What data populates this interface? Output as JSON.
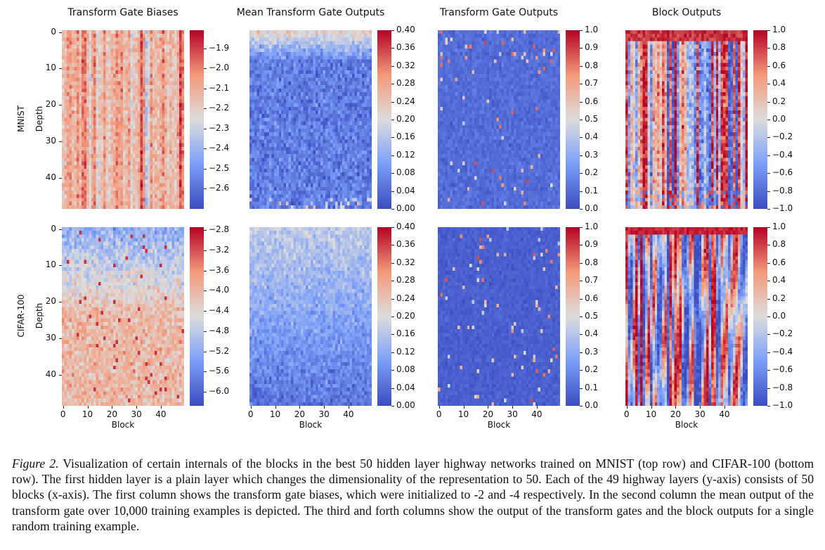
{
  "column_titles": [
    "Transform Gate Biases",
    "Mean Transform Gate Outputs",
    "Transform Gate Outputs",
    "Block Outputs"
  ],
  "row_labels": [
    "MNIST",
    "CIFAR-100"
  ],
  "ylabel": "Depth",
  "xlabel": "Block",
  "colors": {
    "cmap": [
      "#3b4cc0",
      "#7b9ff9",
      "#dddddd",
      "#f49a7b",
      "#b40426"
    ]
  },
  "chart_data": {
    "type": "heatmap",
    "grid": {
      "rows": 49,
      "cols": 50
    },
    "x_ticks": [
      "0",
      "10",
      "20",
      "30",
      "40"
    ],
    "y_ticks": [
      "0",
      "10",
      "20",
      "30",
      "40"
    ],
    "panels": [
      {
        "row": "MNIST",
        "title": "Transform Gate Biases",
        "vmin": -2.7,
        "vmax": -1.81,
        "cbar_ticks": [
          "−1.9",
          "−2.0",
          "−2.1",
          "−2.2",
          "−2.3",
          "−2.4",
          "−2.5",
          "−2.6"
        ],
        "cbar_values": [
          -1.9,
          -2.0,
          -2.1,
          -2.2,
          -2.3,
          -2.4,
          -2.5,
          -2.6
        ]
      },
      {
        "row": "MNIST",
        "title": "Mean Transform Gate Outputs",
        "vmin": 0,
        "vmax": 0.4,
        "cbar_ticks": [
          "0.40",
          "0.36",
          "0.32",
          "0.28",
          "0.24",
          "0.20",
          "0.16",
          "0.12",
          "0.08",
          "0.04",
          "0.00"
        ],
        "cbar_values": [
          0.4,
          0.36,
          0.32,
          0.28,
          0.24,
          0.2,
          0.16,
          0.12,
          0.08,
          0.04,
          0.0
        ]
      },
      {
        "row": "MNIST",
        "title": "Transform Gate Outputs",
        "vmin": 0,
        "vmax": 1,
        "cbar_ticks": [
          "1.0",
          "0.9",
          "0.8",
          "0.7",
          "0.6",
          "0.5",
          "0.4",
          "0.3",
          "0.2",
          "0.1",
          "0.0"
        ],
        "cbar_values": [
          1.0,
          0.9,
          0.8,
          0.7,
          0.6,
          0.5,
          0.4,
          0.3,
          0.2,
          0.1,
          0.0
        ]
      },
      {
        "row": "MNIST",
        "title": "Block Outputs",
        "vmin": -1,
        "vmax": 1,
        "cbar_ticks": [
          "1.0",
          "0.8",
          "0.6",
          "0.4",
          "0.2",
          "0.0",
          "−0.2",
          "−0.4",
          "−0.6",
          "−0.8",
          "−1.0"
        ],
        "cbar_values": [
          1.0,
          0.8,
          0.6,
          0.4,
          0.2,
          0.0,
          -0.2,
          -0.4,
          -0.6,
          -0.8,
          -1.0
        ]
      },
      {
        "row": "CIFAR-100",
        "title": "Transform Gate Biases",
        "vmin": -6.28,
        "vmax": -2.74,
        "cbar_ticks": [
          "−2.8",
          "−3.2",
          "−3.6",
          "−4.0",
          "−4.4",
          "−4.8",
          "−5.2",
          "−5.6",
          "−6.0"
        ],
        "cbar_values": [
          -2.8,
          -3.2,
          -3.6,
          -4.0,
          -4.4,
          -4.8,
          -5.2,
          -5.6,
          -6.0
        ]
      },
      {
        "row": "CIFAR-100",
        "title": "Mean Transform Gate Outputs",
        "vmin": 0,
        "vmax": 0.4,
        "cbar_ticks": [
          "0.40",
          "0.36",
          "0.32",
          "0.28",
          "0.24",
          "0.20",
          "0.16",
          "0.12",
          "0.08",
          "0.04",
          "0.00"
        ],
        "cbar_values": [
          0.4,
          0.36,
          0.32,
          0.28,
          0.24,
          0.2,
          0.16,
          0.12,
          0.08,
          0.04,
          0.0
        ]
      },
      {
        "row": "CIFAR-100",
        "title": "Transform Gate Outputs",
        "vmin": 0,
        "vmax": 1,
        "cbar_ticks": [
          "1.0",
          "0.9",
          "0.8",
          "0.7",
          "0.6",
          "0.5",
          "0.4",
          "0.3",
          "0.2",
          "0.1",
          "0.0"
        ],
        "cbar_values": [
          1.0,
          0.9,
          0.8,
          0.7,
          0.6,
          0.5,
          0.4,
          0.3,
          0.2,
          0.1,
          0.0
        ]
      },
      {
        "row": "CIFAR-100",
        "title": "Block Outputs",
        "vmin": -1,
        "vmax": 1,
        "cbar_ticks": [
          "1.0",
          "0.8",
          "0.6",
          "0.4",
          "0.2",
          "0.0",
          "−0.2",
          "−0.4",
          "−0.6",
          "−0.8",
          "−1.0"
        ],
        "cbar_values": [
          1.0,
          0.8,
          0.6,
          0.4,
          0.2,
          0.0,
          -0.2,
          -0.4,
          -0.6,
          -0.8,
          -1.0
        ]
      }
    ]
  },
  "caption": {
    "label": "Figure 2.",
    "text": " Visualization of certain internals of the blocks in the best 50 hidden layer highway networks trained on MNIST (top row) and CIFAR-100 (bottom row). The first hidden layer is a plain layer which changes the dimensionality of the representation to 50. Each of the 49 highway layers (y-axis) consists of 50 blocks (x-axis). The first column shows the transform gate biases, which were initialized to -2 and -4 respectively. In the second column the mean output of the transform gate over 10,000 training examples is depicted. The third and forth columns show the output of the transform gates and the block outputs for a single random training example."
  }
}
